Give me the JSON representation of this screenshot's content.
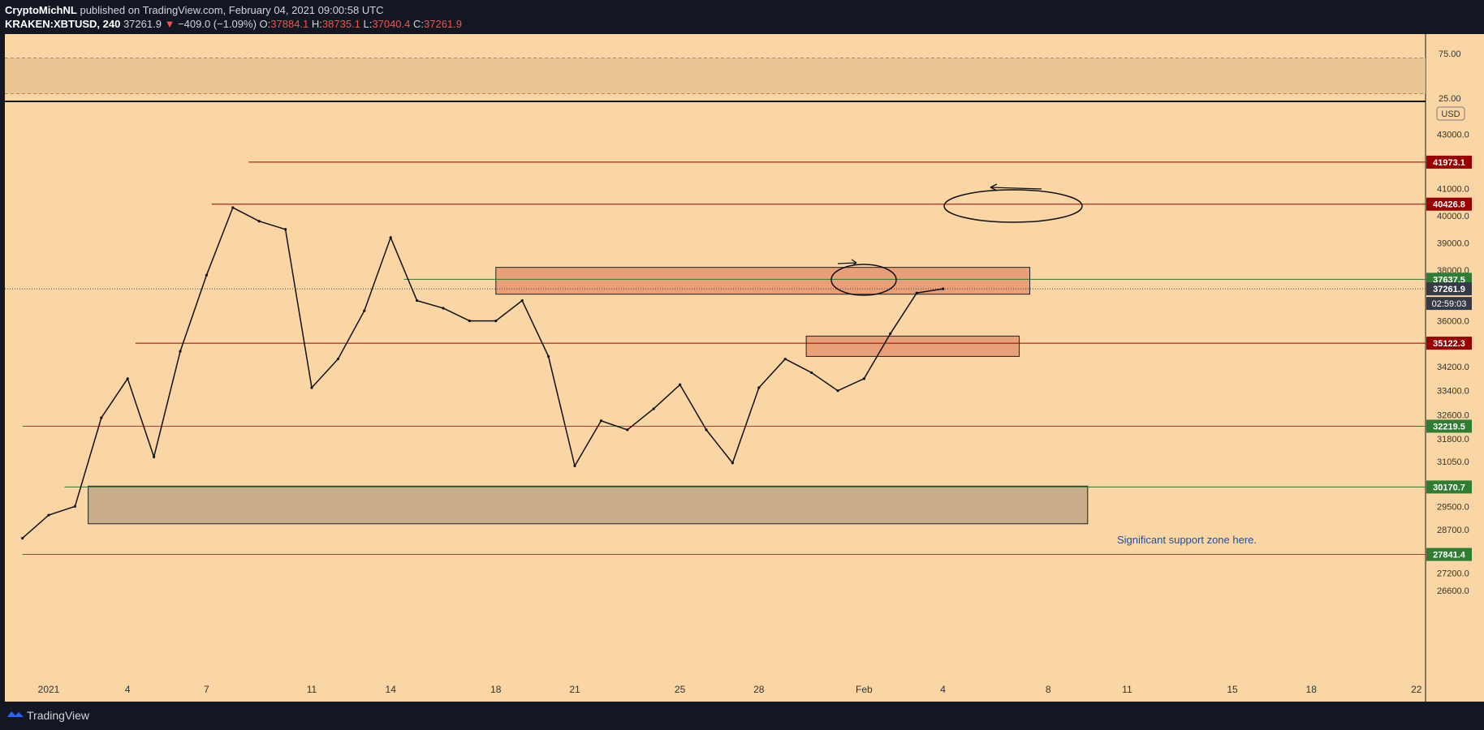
{
  "header": {
    "author": "CryptoMichNL",
    "published": "published on TradingView.com, February 04, 2021 09:00:58 UTC",
    "symbol": "KRAKEN:XBTUSD, 240",
    "last": "37261.9",
    "change": "−409.0 (−1.09%)",
    "o_label": "O:",
    "o_value": "37884.1",
    "h_label": "H:",
    "h_value": "38735.1",
    "l_label": "L:",
    "l_value": "37040.4",
    "c_label": "C:",
    "c_value": "37261.9"
  },
  "footer": {
    "brand": "TradingView"
  },
  "colors": {
    "background": "#f9d6a4",
    "frame": "#131722",
    "resistance": "#990000",
    "support": "#2e7d32",
    "current": "#363a45",
    "zone_orange": "#e8a078",
    "zone_brown": "#c9ad8a",
    "annotation": "#1f4e9c"
  },
  "chart_data": {
    "type": "candlestick",
    "title": "",
    "currency": "USD",
    "y_ticks": [
      "43000.0",
      "41000.0",
      "40000.0",
      "39000.0",
      "38000.0",
      "36000.0",
      "34200.0",
      "33400.0",
      "32600.0",
      "31800.0",
      "31050.0",
      "29500.0",
      "28700.0",
      "27200.0",
      "26600.0"
    ],
    "x_ticks": [
      "2021",
      "4",
      "7",
      "11",
      "14",
      "18",
      "21",
      "25",
      "28",
      "Feb",
      "4",
      "8",
      "11",
      "15",
      "18",
      "22"
    ],
    "x_tick_values": [
      1,
      4,
      7,
      11,
      14,
      18,
      21,
      25,
      28,
      32,
      35,
      39,
      42,
      46,
      49,
      53
    ],
    "ohlc_summary": {
      "open": 37884.1,
      "high": 38735.1,
      "low": 37040.4,
      "close": 37261.9,
      "change": -409.0,
      "change_pct": -1.09
    },
    "approx_close_path": [
      {
        "day": 0,
        "price": 28400
      },
      {
        "day": 1,
        "price": 29200
      },
      {
        "day": 2,
        "price": 29500
      },
      {
        "day": 3,
        "price": 32500
      },
      {
        "day": 4,
        "price": 33800
      },
      {
        "day": 5,
        "price": 31200
      },
      {
        "day": 6,
        "price": 34800
      },
      {
        "day": 7,
        "price": 37800
      },
      {
        "day": 8,
        "price": 40300
      },
      {
        "day": 9,
        "price": 39800
      },
      {
        "day": 10,
        "price": 39500
      },
      {
        "day": 11,
        "price": 33500
      },
      {
        "day": 12,
        "price": 34500
      },
      {
        "day": 13,
        "price": 36400
      },
      {
        "day": 14,
        "price": 39200
      },
      {
        "day": 15,
        "price": 36800
      },
      {
        "day": 16,
        "price": 36500
      },
      {
        "day": 17,
        "price": 36000
      },
      {
        "day": 18,
        "price": 36000
      },
      {
        "day": 19,
        "price": 36800
      },
      {
        "day": 20,
        "price": 34600
      },
      {
        "day": 21,
        "price": 30900
      },
      {
        "day": 22,
        "price": 32400
      },
      {
        "day": 23,
        "price": 32100
      },
      {
        "day": 24,
        "price": 32800
      },
      {
        "day": 25,
        "price": 33600
      },
      {
        "day": 26,
        "price": 32100
      },
      {
        "day": 27,
        "price": 31000
      },
      {
        "day": 28,
        "price": 33500
      },
      {
        "day": 29,
        "price": 34500
      },
      {
        "day": 30,
        "price": 34000
      },
      {
        "day": 31,
        "price": 33400
      },
      {
        "day": 32,
        "price": 33800
      },
      {
        "day": 33,
        "price": 35500
      },
      {
        "day": 34,
        "price": 37100
      },
      {
        "day": 35,
        "price": 37262
      }
    ],
    "volume_peaks": [],
    "rsi": {
      "levels": [
        "75.00",
        "25.00"
      ],
      "band": [
        30,
        70
      ]
    },
    "horizontal_levels": [
      {
        "label": "41973.1",
        "price": 41973.1,
        "kind": "resistance",
        "from_day": 8.6
      },
      {
        "label": "40426.8",
        "price": 40426.8,
        "kind": "resistance",
        "from_day": 7.2
      },
      {
        "label": "37637.5",
        "price": 37637.5,
        "kind": "support",
        "from_day": 14.5
      },
      {
        "label": "35122.3",
        "price": 35122.3,
        "kind": "resistance",
        "from_day": 4.3
      },
      {
        "label": "32219.5",
        "price": 32219.5,
        "kind": "support",
        "from_day": 0
      },
      {
        "label": "30170.7",
        "price": 30170.7,
        "kind": "support",
        "from_day": 1.6
      },
      {
        "label": "27841.4",
        "price": 27841.4,
        "kind": "support",
        "from_day": 0
      }
    ],
    "current_price": {
      "label": "37261.9",
      "price": 37261.9
    },
    "countdown": "02:59:03",
    "zones": [
      {
        "from_day": 18,
        "to_day": 38.3,
        "low": 37050,
        "high": 38100,
        "color": "orange"
      },
      {
        "from_day": 29.8,
        "to_day": 37.9,
        "low": 34600,
        "high": 35400,
        "color": "orange"
      },
      {
        "from_day": 2.5,
        "to_day": 40.5,
        "low": 28900,
        "high": 30200,
        "color": "brown"
      }
    ],
    "annotation": "Significant support zone here."
  }
}
